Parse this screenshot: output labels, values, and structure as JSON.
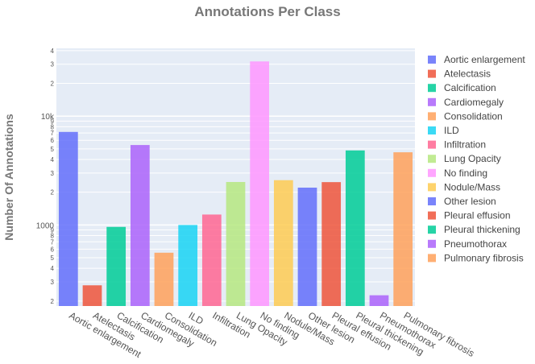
{
  "chart_data": {
    "type": "bar",
    "title": "Annotations Per Class",
    "xlabel": "",
    "ylabel": "Number Of Annotations",
    "yscale": "log",
    "ylim": [
      180,
      42000
    ],
    "grid": true,
    "legend_position": "right",
    "categories": [
      "Aortic enlargement",
      "Atelectasis",
      "Calcification",
      "Cardiomegaly",
      "Consolidation",
      "ILD",
      "Infiltration",
      "Lung Opacity",
      "No finding",
      "Nodule/Mass",
      "Other lesion",
      "Pleural effusion",
      "Pleural thickening",
      "Pneumothorax",
      "Pulmonary fibrosis"
    ],
    "values": [
      7162,
      279,
      960,
      5427,
      556,
      1000,
      1247,
      2483,
      31818,
      2580,
      2203,
      2476,
      4842,
      226,
      4655
    ],
    "colors": [
      "#636efa",
      "#EF553B",
      "#00cc96",
      "#ab63fa",
      "#FFA15A",
      "#19d3f3",
      "#FF6692",
      "#B6E880",
      "#FF97FF",
      "#FECB52",
      "#636efa",
      "#EF553B",
      "#00cc96",
      "#ab63fa",
      "#FFA15A"
    ],
    "major_ticks": [
      {
        "value": 1000,
        "label": "1000"
      },
      {
        "value": 10000,
        "label": "10k"
      }
    ],
    "minor_ticks": [
      {
        "value": 200,
        "label": "2"
      },
      {
        "value": 300,
        "label": "3"
      },
      {
        "value": 400,
        "label": "4"
      },
      {
        "value": 500,
        "label": "5"
      },
      {
        "value": 600,
        "label": "6"
      },
      {
        "value": 700,
        "label": "7"
      },
      {
        "value": 800,
        "label": "8"
      },
      {
        "value": 900,
        "label": "9"
      },
      {
        "value": 2000,
        "label": "2"
      },
      {
        "value": 3000,
        "label": "3"
      },
      {
        "value": 4000,
        "label": "4"
      },
      {
        "value": 5000,
        "label": "5"
      },
      {
        "value": 6000,
        "label": "6"
      },
      {
        "value": 7000,
        "label": "7"
      },
      {
        "value": 8000,
        "label": "8"
      },
      {
        "value": 9000,
        "label": "9"
      },
      {
        "value": 20000,
        "label": "2"
      },
      {
        "value": 30000,
        "label": "3"
      },
      {
        "value": 40000,
        "label": "4"
      }
    ],
    "colors_theme": {
      "plot_background": "#e5ecf6",
      "grid": "#ffffff"
    }
  }
}
